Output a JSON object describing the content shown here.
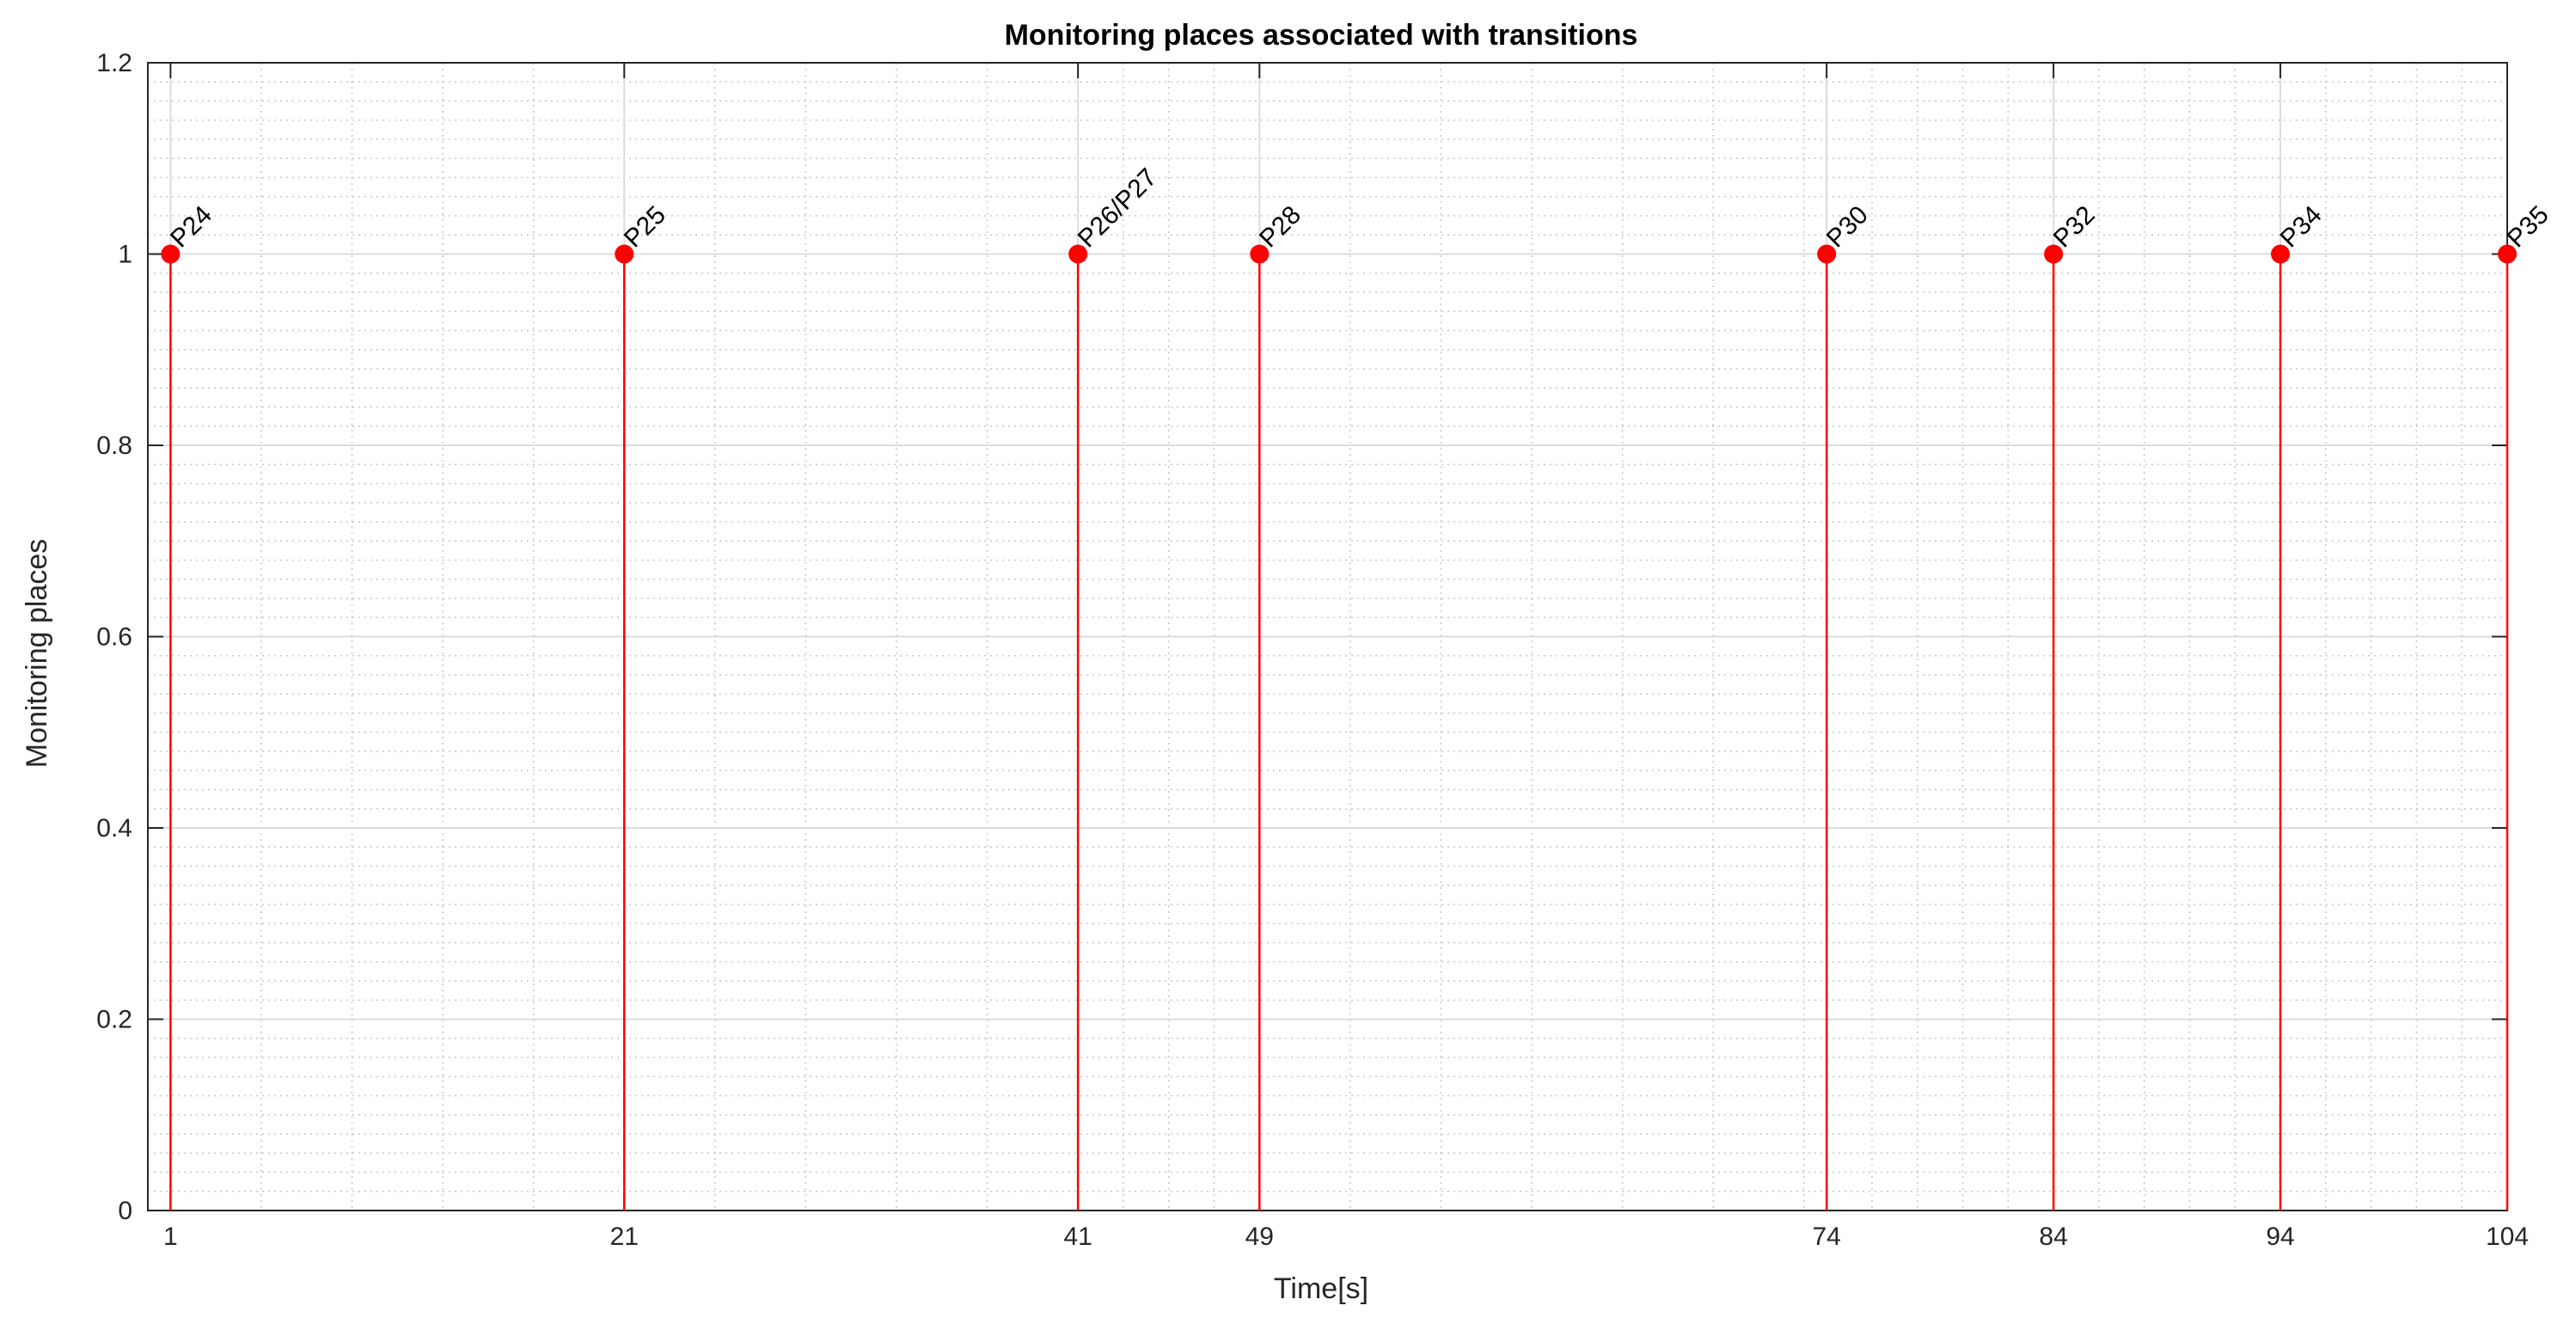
{
  "chart_data": {
    "type": "stem",
    "title": "Monitoring places associated with transitions",
    "xlabel": "Time[s]",
    "ylabel": "Monitoring places",
    "xlim": [
      0,
      104
    ],
    "ylim": [
      0,
      1.2
    ],
    "x_ticks": [
      1,
      21,
      41,
      49,
      74,
      84,
      94,
      104
    ],
    "y_ticks": [
      0,
      0.2,
      0.4,
      0.6,
      0.8,
      1,
      1.2
    ],
    "y_tick_labels": [
      "0",
      "0.2",
      "0.4",
      "0.6",
      "0.8",
      "1",
      "1.2"
    ],
    "grid": true,
    "minor_grid": true,
    "series": [
      {
        "color": "#ff0000",
        "points": [
          {
            "x": 1,
            "y": 1,
            "label": "P24"
          },
          {
            "x": 21,
            "y": 1,
            "label": "P25"
          },
          {
            "x": 41,
            "y": 1,
            "label": "P26/P27"
          },
          {
            "x": 49,
            "y": 1,
            "label": "P28"
          },
          {
            "x": 74,
            "y": 1,
            "label": "P30"
          },
          {
            "x": 84,
            "y": 1,
            "label": "P32"
          },
          {
            "x": 94,
            "y": 1,
            "label": "P34"
          },
          {
            "x": 104,
            "y": 1,
            "label": "P35"
          }
        ]
      }
    ]
  }
}
